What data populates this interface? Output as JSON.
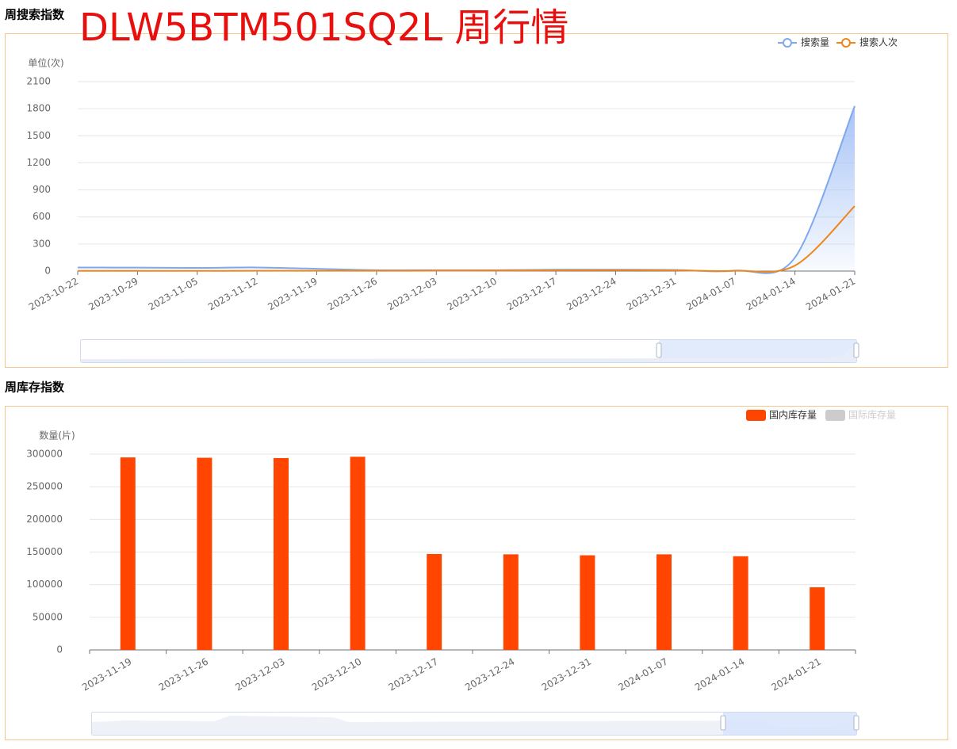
{
  "headline": "DLW5BTM501SQ2L 周行情",
  "chart_data": [
    {
      "type": "line",
      "title": "周搜索指数",
      "y_label": "单位(次)",
      "x": [
        "2023-10-22",
        "2023-10-29",
        "2023-11-05",
        "2023-11-12",
        "2023-11-19",
        "2023-11-26",
        "2023-12-03",
        "2023-12-10",
        "2023-12-17",
        "2023-12-24",
        "2023-12-31",
        "2024-01-07",
        "2024-01-14",
        "2024-01-21"
      ],
      "series": [
        {
          "name": "搜索量",
          "color": "#7fa8ee",
          "area": true,
          "values": [
            40,
            38,
            35,
            40,
            25,
            10,
            10,
            10,
            15,
            15,
            12,
            5,
            150,
            1830
          ]
        },
        {
          "name": "搜索人次",
          "color": "#f08519",
          "values": [
            2,
            2,
            2,
            3,
            3,
            3,
            4,
            5,
            8,
            10,
            8,
            3,
            60,
            720
          ]
        }
      ],
      "ylim": [
        0,
        2100
      ],
      "yticks": [
        0,
        300,
        600,
        900,
        1200,
        1500,
        1800,
        2100
      ],
      "grid": true,
      "legend": "top-right"
    },
    {
      "type": "bar",
      "title": "周库存指数",
      "y_label": "数量(片)",
      "categories": [
        "2023-11-19",
        "2023-11-26",
        "2023-12-03",
        "2023-12-10",
        "2023-12-17",
        "2023-12-24",
        "2023-12-31",
        "2024-01-07",
        "2024-01-14",
        "2024-01-21"
      ],
      "series": [
        {
          "name": "国内库存量",
          "color": "#ff4500",
          "values": [
            295000,
            294500,
            294000,
            296000,
            147000,
            146500,
            145000,
            146500,
            143500,
            96000
          ]
        },
        {
          "name": "国际库存量",
          "color": "#cccccc",
          "visible": false
        }
      ],
      "ylim": [
        0,
        300000
      ],
      "yticks": [
        0,
        50000,
        100000,
        150000,
        200000,
        250000,
        300000
      ],
      "grid": true,
      "legend": "top-right"
    }
  ]
}
